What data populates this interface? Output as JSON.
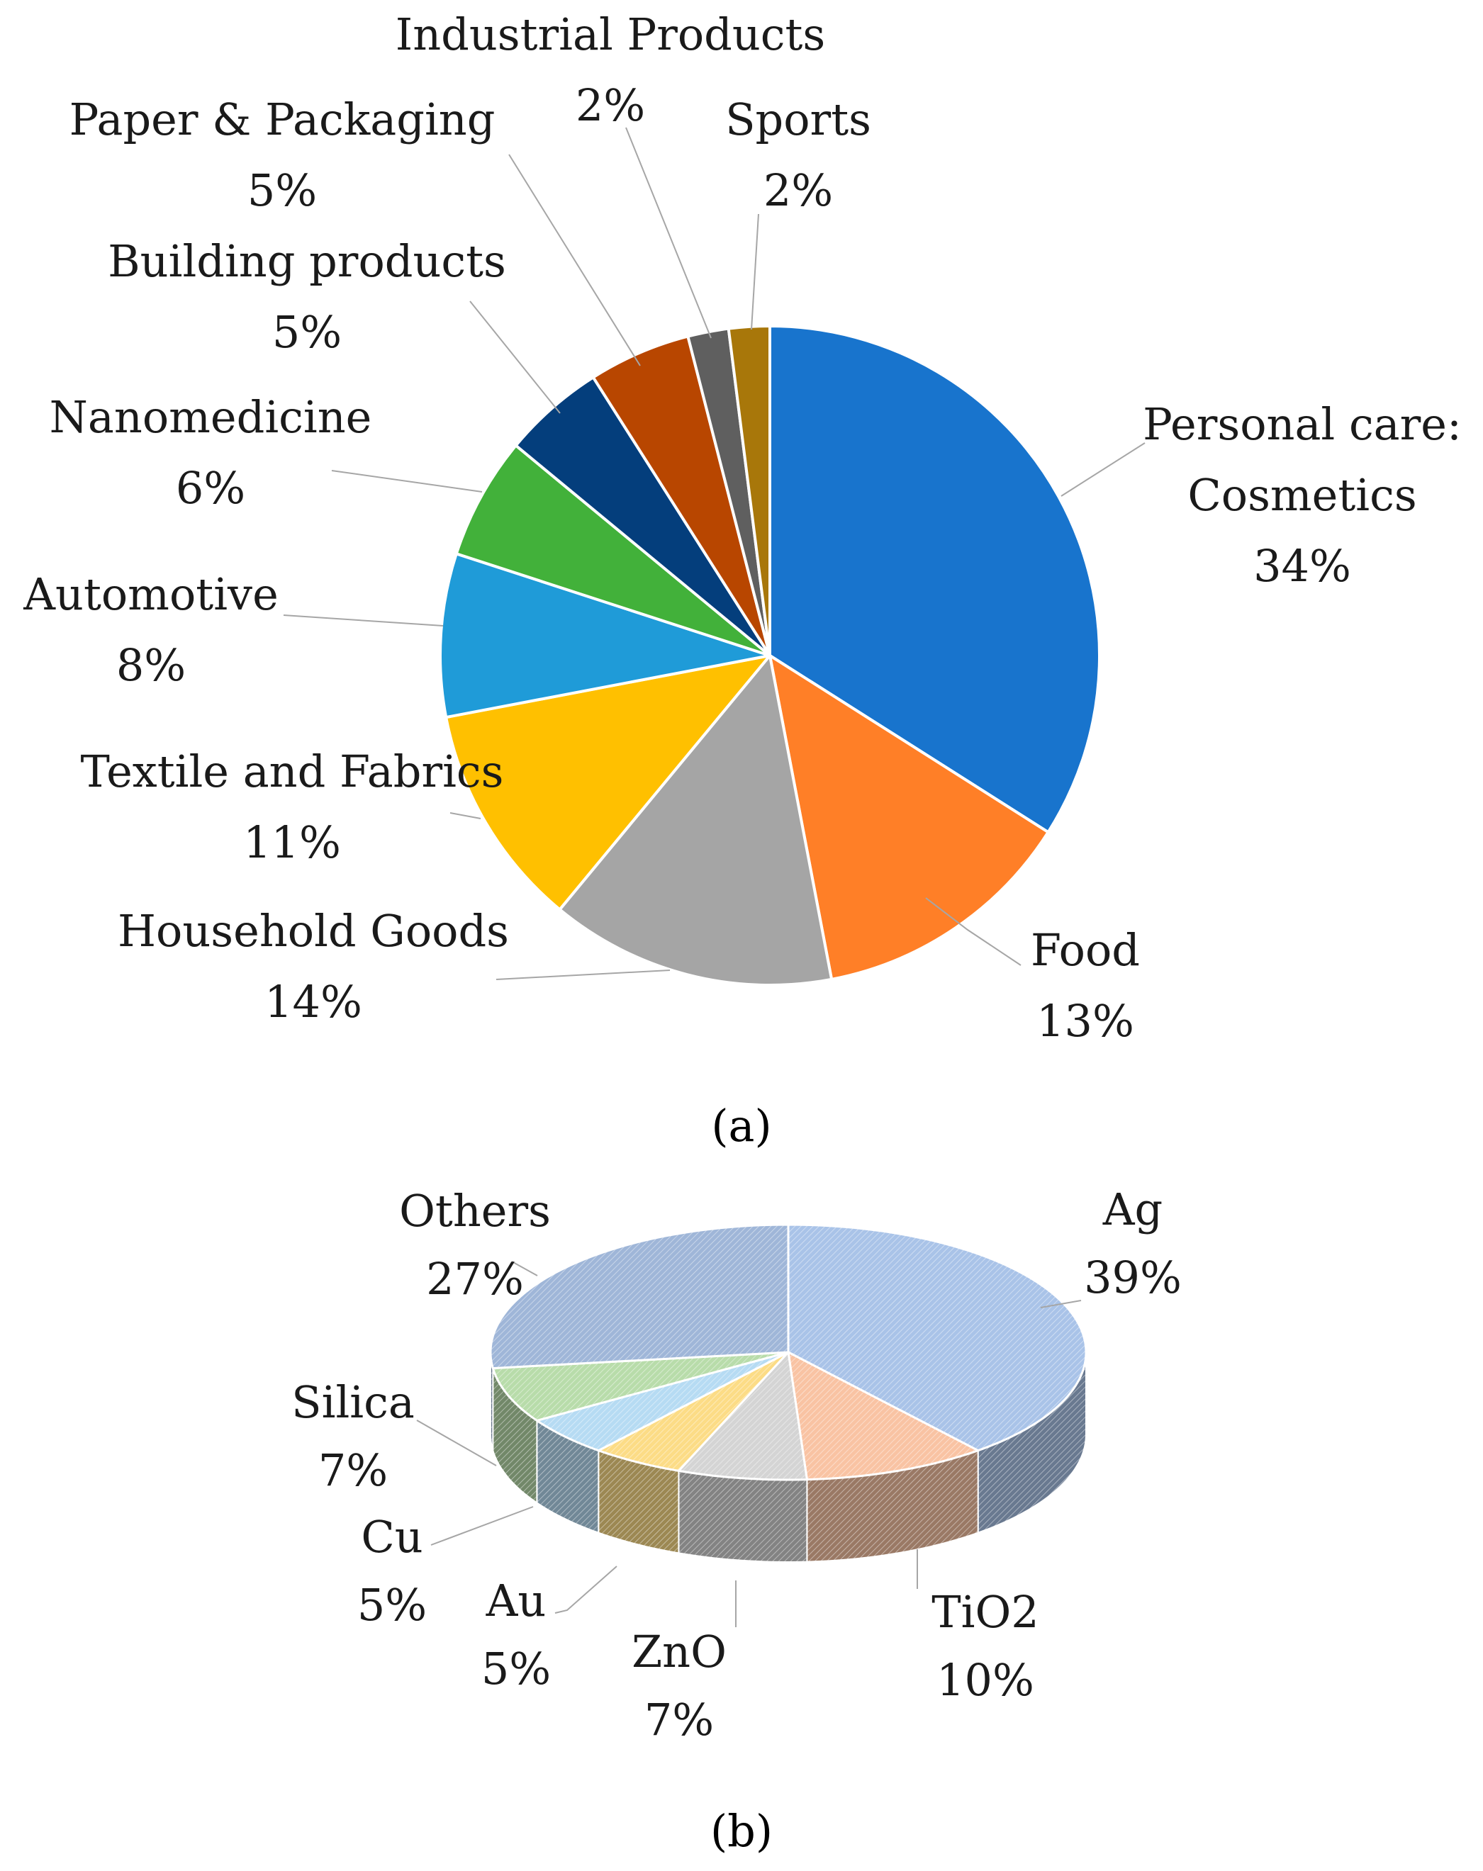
{
  "chart_data": [
    {
      "type": "pie",
      "caption": "(a)",
      "slices": [
        {
          "name": "Personal care: Cosmetics",
          "label_lines": [
            "Personal care:",
            "Cosmetics"
          ],
          "pct_label": "34%",
          "value": 34,
          "color": "#1874cd"
        },
        {
          "name": "Food",
          "label_lines": [
            "Food"
          ],
          "pct_label": "13%",
          "value": 13,
          "color": "#ff7f27"
        },
        {
          "name": "Household Goods",
          "label_lines": [
            "Household Goods"
          ],
          "pct_label": "14%",
          "value": 14,
          "color": "#a5a5a5"
        },
        {
          "name": "Textile and Fabrics",
          "label_lines": [
            "Textile and Fabrics"
          ],
          "pct_label": "11%",
          "value": 11,
          "color": "#ffc000"
        },
        {
          "name": "Automotive",
          "label_lines": [
            "Automotive"
          ],
          "pct_label": "8%",
          "value": 8,
          "color": "#1f9bd8"
        },
        {
          "name": "Nanomedicine",
          "label_lines": [
            "Nanomedicine"
          ],
          "pct_label": "6%",
          "value": 6,
          "color": "#42b13a"
        },
        {
          "name": "Building products",
          "label_lines": [
            "Building products"
          ],
          "pct_label": "5%",
          "value": 5,
          "color": "#043e7c"
        },
        {
          "name": "Paper & Packaging",
          "label_lines": [
            "Paper & Packaging"
          ],
          "pct_label": "5%",
          "value": 5,
          "color": "#b84600"
        },
        {
          "name": "Industrial Products",
          "label_lines": [
            "Industrial Products"
          ],
          "pct_label": "2%",
          "value": 2,
          "color": "#5f5f5f"
        },
        {
          "name": "Sports",
          "label_lines": [
            "Sports"
          ],
          "pct_label": "2%",
          "value": 2,
          "color": "#a8770a"
        }
      ]
    },
    {
      "type": "pie",
      "style": "3d",
      "caption": "(b)",
      "slices": [
        {
          "name": "Ag",
          "label_lines": [
            "Ag"
          ],
          "pct_label": "39%",
          "value": 39,
          "color": "#a9c3e8"
        },
        {
          "name": "TiO2",
          "label_lines": [
            "TiO2"
          ],
          "pct_label": "10%",
          "value": 10,
          "color": "#f9c3a3"
        },
        {
          "name": "ZnO",
          "label_lines": [
            "ZnO"
          ],
          "pct_label": "7%",
          "value": 7,
          "color": "#d4d4d4"
        },
        {
          "name": "Au",
          "label_lines": [
            "Au"
          ],
          "pct_label": "5%",
          "value": 5,
          "color": "#fcdc86"
        },
        {
          "name": "Cu",
          "label_lines": [
            "Cu"
          ],
          "pct_label": "5%",
          "value": 5,
          "color": "#b6dbf3"
        },
        {
          "name": "Silica",
          "label_lines": [
            "Silica"
          ],
          "pct_label": "7%",
          "value": 7,
          "color": "#b8dcaa"
        },
        {
          "name": "Others",
          "label_lines": [
            "Others"
          ],
          "pct_label": "27%",
          "value": 27,
          "color": "#9fb6d8"
        }
      ]
    }
  ]
}
